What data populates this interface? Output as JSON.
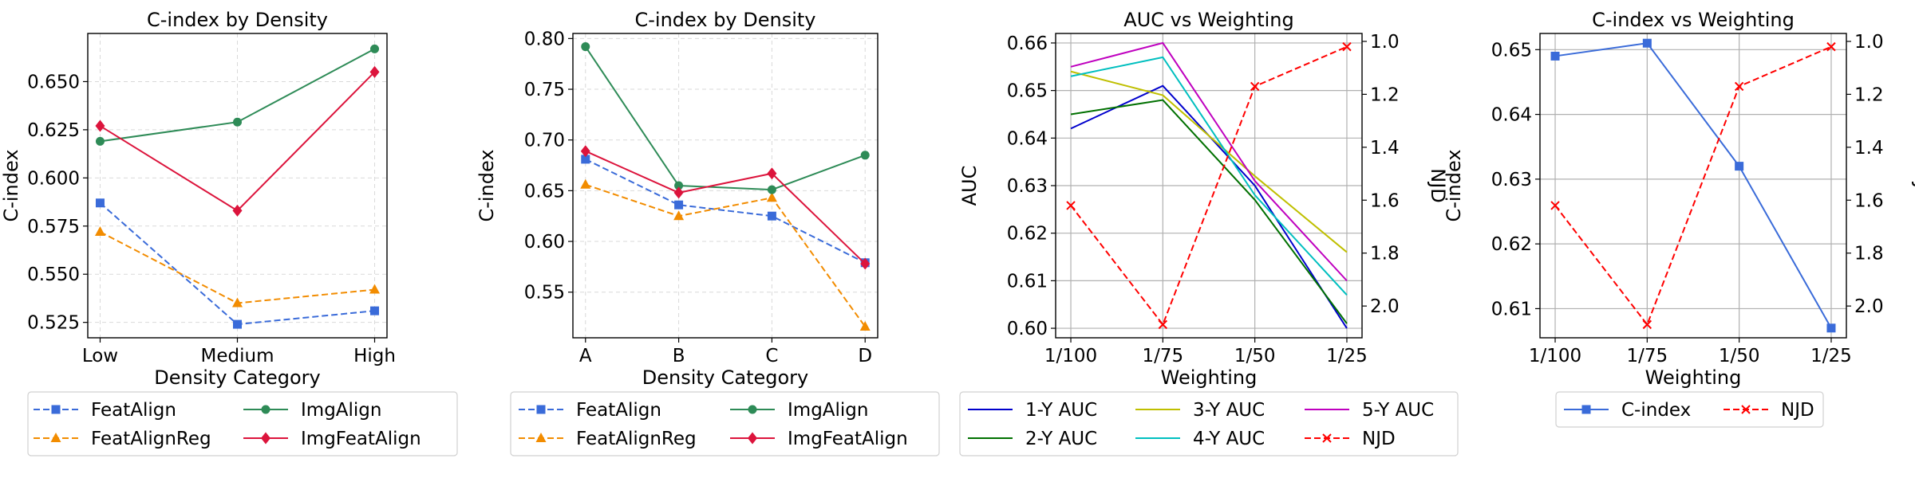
{
  "chart_data": [
    {
      "type": "line",
      "title": "C-index by Density",
      "xlabel": "Density Category",
      "ylabel": "C-index",
      "categories": [
        "Low",
        "Medium",
        "High"
      ],
      "ylim": [
        0.517,
        0.675
      ],
      "yticks": [
        0.525,
        0.55,
        0.575,
        0.6,
        0.625,
        0.65
      ],
      "ytick_labels": [
        "0.525",
        "0.550",
        "0.575",
        "0.600",
        "0.625",
        "0.650"
      ],
      "grid": true,
      "legend_placement": "bottom",
      "series": [
        {
          "name": "FeatAlign",
          "values": [
            0.587,
            0.524,
            0.531
          ],
          "color": "#3a6bd9",
          "dash": "dashed",
          "marker": "square"
        },
        {
          "name": "FeatAlignReg",
          "values": [
            0.572,
            0.535,
            0.542
          ],
          "color": "#f28c00",
          "dash": "dashed",
          "marker": "triangle"
        },
        {
          "name": "ImgAlign",
          "values": [
            0.619,
            0.629,
            0.667
          ],
          "color": "#2e8b57",
          "dash": "solid",
          "marker": "circle"
        },
        {
          "name": "ImgFeatAlign",
          "values": [
            0.627,
            0.583,
            0.655
          ],
          "color": "#dc143c",
          "dash": "solid",
          "marker": "diamond"
        }
      ]
    },
    {
      "type": "line",
      "title": "C-index by Density",
      "xlabel": "Density Category",
      "ylabel": "C-index",
      "categories": [
        "A",
        "B",
        "C",
        "D"
      ],
      "ylim": [
        0.505,
        0.805
      ],
      "yticks": [
        0.55,
        0.6,
        0.65,
        0.7,
        0.75,
        0.8
      ],
      "ytick_labels": [
        "0.55",
        "0.60",
        "0.65",
        "0.70",
        "0.75",
        "0.80"
      ],
      "grid": true,
      "legend_placement": "bottom",
      "series": [
        {
          "name": "FeatAlign",
          "values": [
            0.681,
            0.636,
            0.625,
            0.579
          ],
          "color": "#3a6bd9",
          "dash": "dashed",
          "marker": "square"
        },
        {
          "name": "FeatAlignReg",
          "values": [
            0.656,
            0.625,
            0.643,
            0.516
          ],
          "color": "#f28c00",
          "dash": "dashed",
          "marker": "triangle"
        },
        {
          "name": "ImgAlign",
          "values": [
            0.792,
            0.655,
            0.651,
            0.685
          ],
          "color": "#2e8b57",
          "dash": "solid",
          "marker": "circle"
        },
        {
          "name": "ImgFeatAlign",
          "values": [
            0.689,
            0.648,
            0.667,
            0.578
          ],
          "color": "#dc143c",
          "dash": "solid",
          "marker": "diamond"
        }
      ]
    },
    {
      "type": "line",
      "title": "AUC vs Weighting",
      "xlabel": "Weighting",
      "ylabel": "AUC",
      "y2label": "NJD",
      "categories": [
        "1/100",
        "1/75",
        "1/50",
        "1/25"
      ],
      "ylim": [
        0.598,
        0.662
      ],
      "yticks": [
        0.6,
        0.61,
        0.62,
        0.63,
        0.64,
        0.65,
        0.66
      ],
      "ytick_labels": [
        "0.60",
        "0.61",
        "0.62",
        "0.63",
        "0.64",
        "0.65",
        "0.66"
      ],
      "y2lim": [
        2.12,
        0.97
      ],
      "y2ticks": [
        1.0,
        1.2,
        1.4,
        1.6,
        1.8,
        2.0
      ],
      "y2tick_labels": [
        "1.0",
        "1.2",
        "1.4",
        "1.6",
        "1.8",
        "2.0"
      ],
      "grid": true,
      "legend_placement": "bottom",
      "series": [
        {
          "name": "1-Y AUC",
          "values": [
            0.642,
            0.651,
            0.63,
            0.6
          ],
          "color": "#0000cc",
          "dash": "solid",
          "marker": "none",
          "axis": "left"
        },
        {
          "name": "2-Y AUC",
          "values": [
            0.645,
            0.648,
            0.627,
            0.601
          ],
          "color": "#007000",
          "dash": "solid",
          "marker": "none",
          "axis": "left"
        },
        {
          "name": "3-Y AUC",
          "values": [
            0.654,
            0.649,
            0.632,
            0.616
          ],
          "color": "#bfbf00",
          "dash": "solid",
          "marker": "none",
          "axis": "left"
        },
        {
          "name": "4-Y AUC",
          "values": [
            0.653,
            0.657,
            0.628,
            0.607
          ],
          "color": "#00bfbf",
          "dash": "solid",
          "marker": "none",
          "axis": "left"
        },
        {
          "name": "5-Y AUC",
          "values": [
            0.655,
            0.66,
            0.631,
            0.61
          ],
          "color": "#bf00bf",
          "dash": "solid",
          "marker": "none",
          "axis": "left"
        },
        {
          "name": "NJD",
          "values": [
            1.62,
            2.07,
            1.17,
            1.02
          ],
          "color": "#ff0000",
          "dash": "dashed",
          "marker": "x",
          "axis": "right"
        }
      ]
    },
    {
      "type": "line",
      "title": "C-index vs Weighting",
      "xlabel": "Weighting",
      "ylabel": "C-index",
      "y2label": "NJD",
      "categories": [
        "1/100",
        "1/75",
        "1/50",
        "1/25"
      ],
      "ylim": [
        0.6055,
        0.6525
      ],
      "yticks": [
        0.61,
        0.62,
        0.63,
        0.64,
        0.65
      ],
      "ytick_labels": [
        "0.61",
        "0.62",
        "0.63",
        "0.64",
        "0.65"
      ],
      "y2lim": [
        2.12,
        0.97
      ],
      "y2ticks": [
        1.0,
        1.2,
        1.4,
        1.6,
        1.8,
        2.0
      ],
      "y2tick_labels": [
        "1.0",
        "1.2",
        "1.4",
        "1.6",
        "1.8",
        "2.0"
      ],
      "grid": true,
      "legend_placement": "bottom",
      "series": [
        {
          "name": "C-index",
          "values": [
            0.649,
            0.651,
            0.632,
            0.607
          ],
          "color": "#3a6bd9",
          "dash": "solid",
          "marker": "square",
          "axis": "left"
        },
        {
          "name": "NJD",
          "values": [
            1.62,
            2.07,
            1.17,
            1.02
          ],
          "color": "#ff0000",
          "dash": "dashed",
          "marker": "x",
          "axis": "right"
        }
      ]
    }
  ]
}
